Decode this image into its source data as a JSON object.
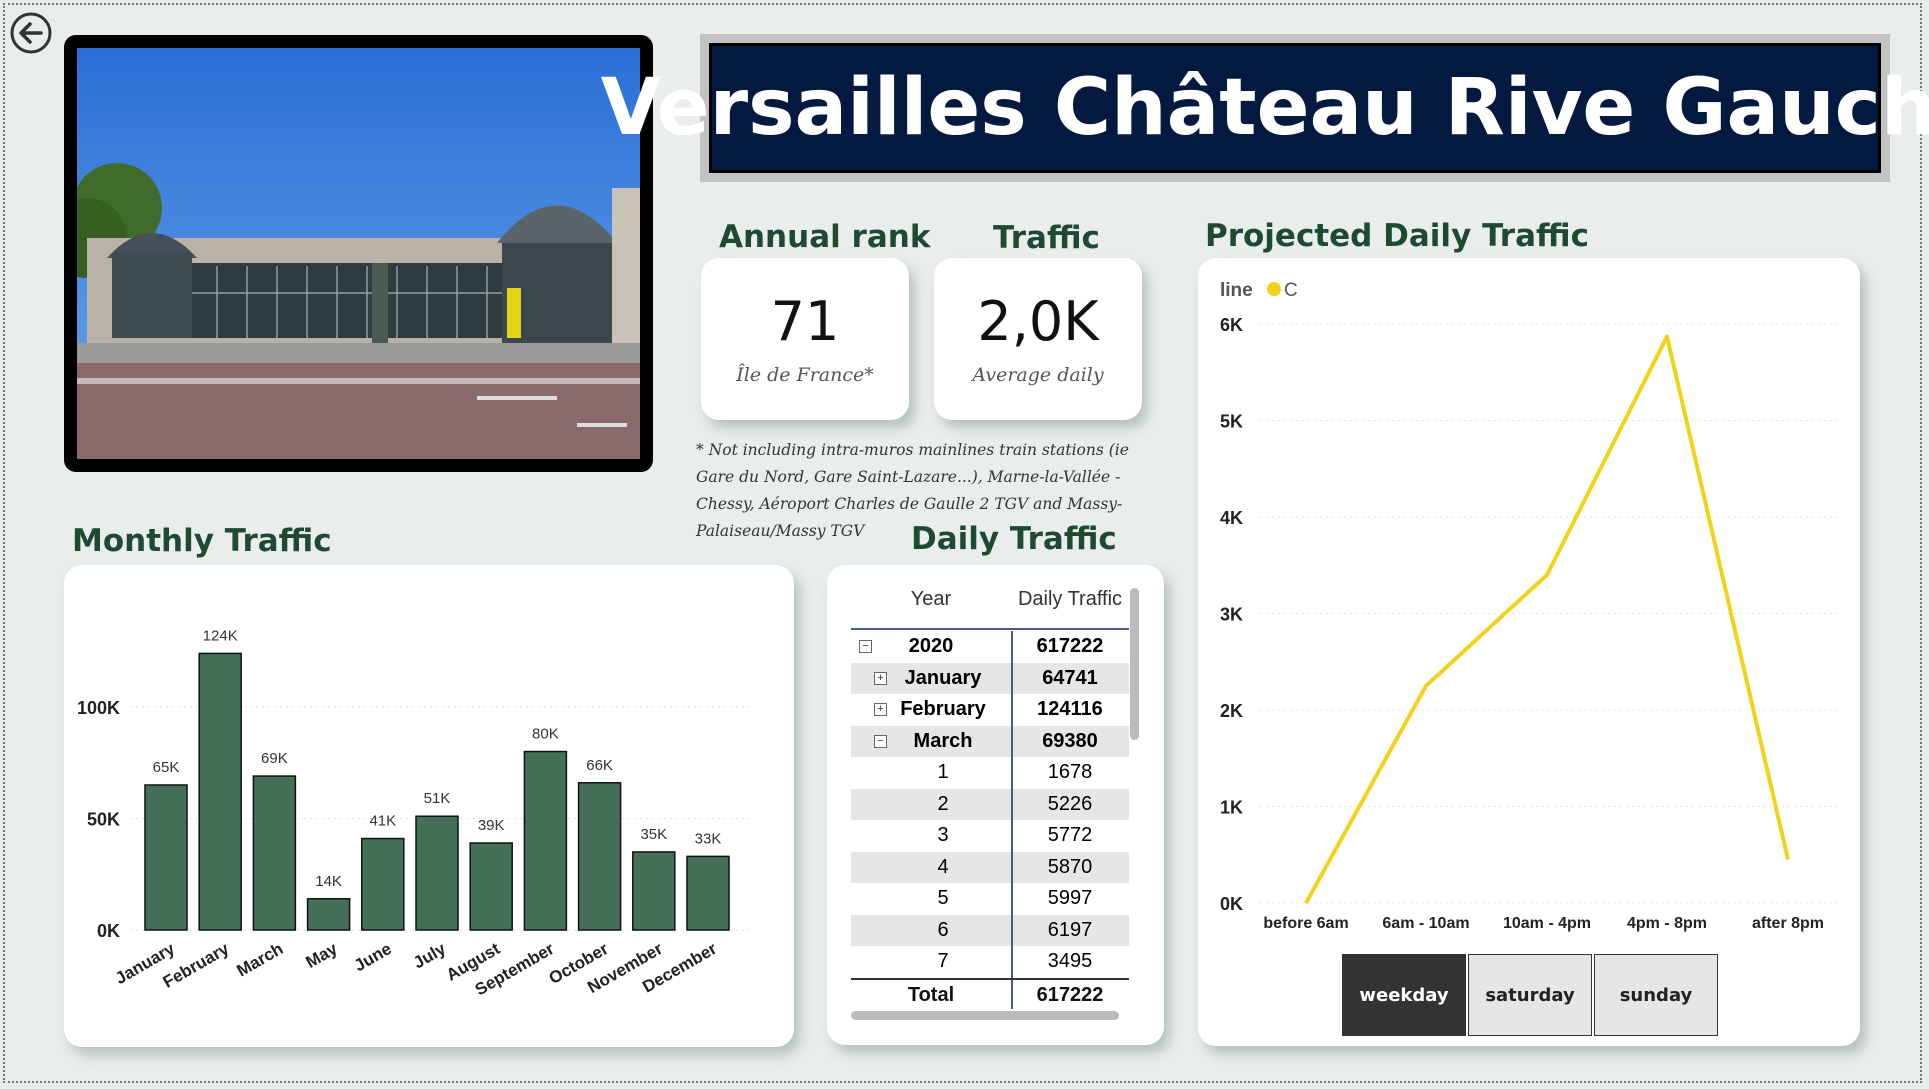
{
  "title": "Versailles Château Rive Gauche",
  "headings": {
    "annual_rank": "Annual rank",
    "traffic": "Traffic",
    "projected": "Projected Daily Traffic",
    "monthly": "Monthly Traffic",
    "daily": "Daily Traffic"
  },
  "kpi": {
    "rank_value": "71",
    "rank_sub": "Île de France*",
    "traffic_value": "2,0K",
    "traffic_sub": "Average daily"
  },
  "footnote": "* Not including intra-muros mainlines train stations (ie Gare du Nord, Gare Saint-Lazare...), Marne-la-Vallée - Chessy, Aéroport Charles de Gaulle 2 TGV and Massy-Palaiseau/Massy TGV",
  "daily_table": {
    "headers": [
      "Year",
      "Daily Traffic"
    ],
    "rows": [
      {
        "label": "2020",
        "value": "617222",
        "level": 0,
        "expand": "minus",
        "bold": true
      },
      {
        "label": "January",
        "value": "64741",
        "level": 1,
        "expand": "plus",
        "bold": true
      },
      {
        "label": "February",
        "value": "124116",
        "level": 1,
        "expand": "plus",
        "bold": true
      },
      {
        "label": "March",
        "value": "69380",
        "level": 1,
        "expand": "minus",
        "bold": true
      },
      {
        "label": "1",
        "value": "1678",
        "level": 2,
        "bold": false
      },
      {
        "label": "2",
        "value": "5226",
        "level": 2,
        "bold": false
      },
      {
        "label": "3",
        "value": "5772",
        "level": 2,
        "bold": false
      },
      {
        "label": "4",
        "value": "5870",
        "level": 2,
        "bold": false
      },
      {
        "label": "5",
        "value": "5997",
        "level": 2,
        "bold": false
      },
      {
        "label": "6",
        "value": "6197",
        "level": 2,
        "bold": false
      },
      {
        "label": "7",
        "value": "3495",
        "level": 2,
        "bold": false
      }
    ],
    "total_label": "Total",
    "total_value": "617222"
  },
  "buttons": [
    "weekday",
    "saturday",
    "sunday"
  ],
  "colors": {
    "bar": "#44705a",
    "line": "#f2d21b",
    "heading": "#1e4a32",
    "title_bg": "#03193f",
    "selected_button": "#333333"
  },
  "chart_data": [
    {
      "type": "bar",
      "title": "Monthly Traffic",
      "categories": [
        "January",
        "February",
        "March",
        "May",
        "June",
        "July",
        "August",
        "September",
        "October",
        "November",
        "December"
      ],
      "values": [
        65000,
        124000,
        69000,
        14000,
        41000,
        51000,
        39000,
        80000,
        66000,
        35000,
        33000
      ],
      "data_labels": [
        "65K",
        "124K",
        "69K",
        "14K",
        "41K",
        "51K",
        "39K",
        "80K",
        "66K",
        "35K",
        "33K"
      ],
      "yticks": [
        "0K",
        "50K",
        "100K"
      ],
      "ylim": [
        0,
        130000
      ]
    },
    {
      "type": "line",
      "title": "Projected Daily Traffic",
      "legend_title": "line",
      "categories": [
        "before 6am",
        "6am - 10am",
        "10am - 4pm",
        "4pm - 8pm",
        "after 8pm"
      ],
      "series": [
        {
          "name": "C",
          "values": [
            0,
            2250,
            3400,
            5870,
            450
          ]
        }
      ],
      "yticks": [
        "0K",
        "1K",
        "2K",
        "3K",
        "4K",
        "5K",
        "6K"
      ],
      "ylim": [
        0,
        6000
      ]
    }
  ]
}
